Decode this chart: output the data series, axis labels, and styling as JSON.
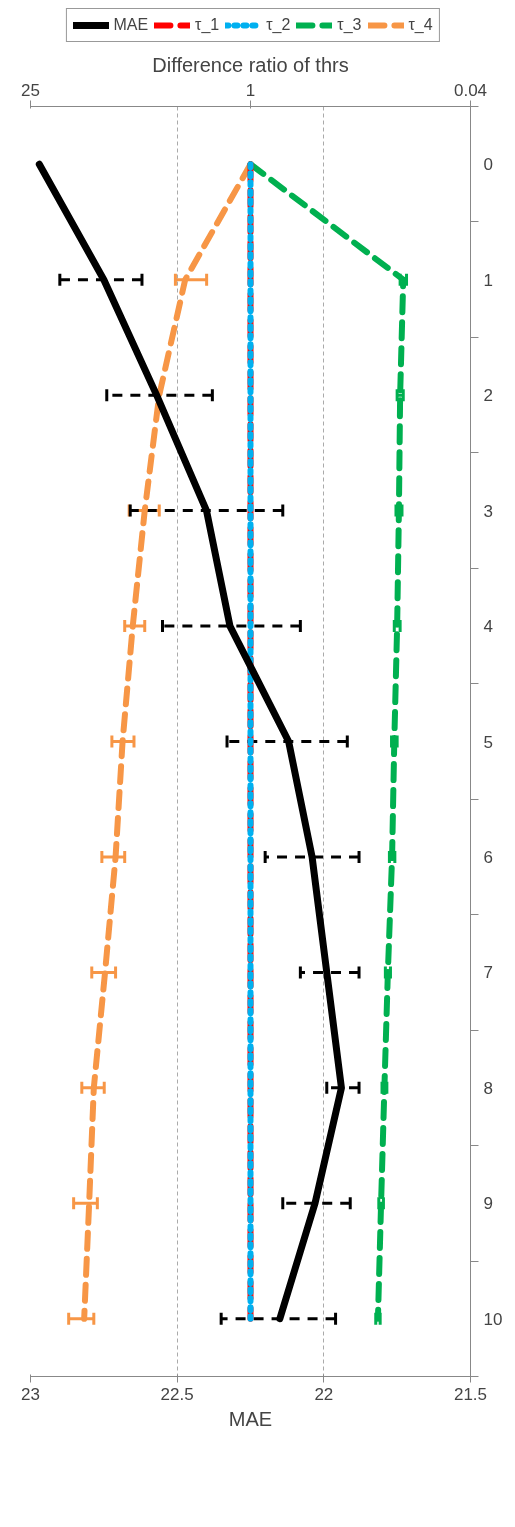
{
  "chart_data": {
    "type": "line",
    "orientation": "horizontal",
    "categories": [
      "0",
      "1",
      "2",
      "3",
      "4",
      "5",
      "6",
      "7",
      "8",
      "9",
      "10"
    ],
    "xlabel": "MAE",
    "x2label": "Difference ratio of thrs",
    "xlim": [
      23,
      21.5
    ],
    "xticks": [
      23,
      22.5,
      22,
      21.5
    ],
    "x2lim": [
      25,
      0.04
    ],
    "x2ticks": [
      25,
      1,
      0.04
    ],
    "log": "x2",
    "grid": "x",
    "legend": "top",
    "series": [
      {
        "name": "MAE",
        "color": "#000000",
        "line_style": "solid",
        "values": [
          22.97,
          22.75,
          22.57,
          22.4,
          22.32,
          22.12,
          22.04,
          21.99,
          21.94,
          22.03,
          22.15
        ],
        "errors": [
          null,
          [
            22.62,
            22.9
          ],
          [
            22.38,
            22.74
          ],
          [
            22.14,
            22.66
          ],
          [
            22.08,
            22.55
          ],
          [
            21.92,
            22.33
          ],
          [
            21.88,
            22.2
          ],
          [
            21.88,
            22.08
          ],
          [
            21.88,
            21.99
          ],
          [
            21.91,
            22.14
          ],
          [
            21.96,
            22.35
          ]
        ]
      },
      {
        "name": "τ_1",
        "color": "#ff0000",
        "line_style": "dashed",
        "axis": "x2",
        "values": [
          1,
          1,
          1,
          1,
          1,
          1,
          1,
          1,
          1,
          1,
          1
        ]
      },
      {
        "name": "τ_2",
        "color": "#00b0f0",
        "line_style": "dotted",
        "axis": "x2",
        "values": [
          1,
          1,
          1,
          1,
          1,
          1,
          1,
          1,
          1,
          1,
          1
        ]
      },
      {
        "name": "τ_3",
        "color": "#00b050",
        "line_style": "dashed",
        "axis": "x2",
        "values": [
          1,
          0.107,
          0.112,
          0.114,
          0.117,
          0.122,
          0.126,
          0.134,
          0.141,
          0.148,
          0.155
        ],
        "errors": [
          null,
          0.005,
          0.005,
          0.005,
          0.005,
          0.005,
          0.005,
          0.005,
          0.005,
          0.005,
          0.005
        ]
      },
      {
        "name": "τ_4",
        "color": "#f79646",
        "line_style": "dashed",
        "axis": "x2",
        "values": [
          1,
          2.6,
          3.8,
          4.7,
          5.6,
          6.5,
          7.2,
          8.4,
          9.9,
          10.6,
          11.4
        ],
        "errors": [
          null,
          [
            1.9,
            3.0
          ],
          null,
          [
            3.8,
            5.9
          ],
          [
            4.7,
            6.3
          ],
          [
            5.5,
            7.6
          ],
          [
            6.3,
            8.8
          ],
          [
            7.2,
            10.2
          ],
          [
            8.5,
            11.8
          ],
          [
            9.4,
            13.3
          ],
          [
            9.9,
            14.3
          ]
        ]
      }
    ]
  }
}
